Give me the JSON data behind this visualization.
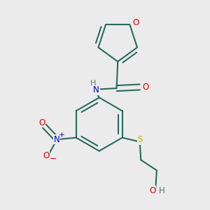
{
  "bg": "#ebebeb",
  "bond_color": "#2a6b5a",
  "colors": {
    "O": "#dd0000",
    "N": "#0000cc",
    "S": "#bbbb00",
    "H": "#4a7a6a",
    "C": "#2a6b5a"
  },
  "figsize": [
    3.0,
    3.0
  ],
  "dpi": 100
}
